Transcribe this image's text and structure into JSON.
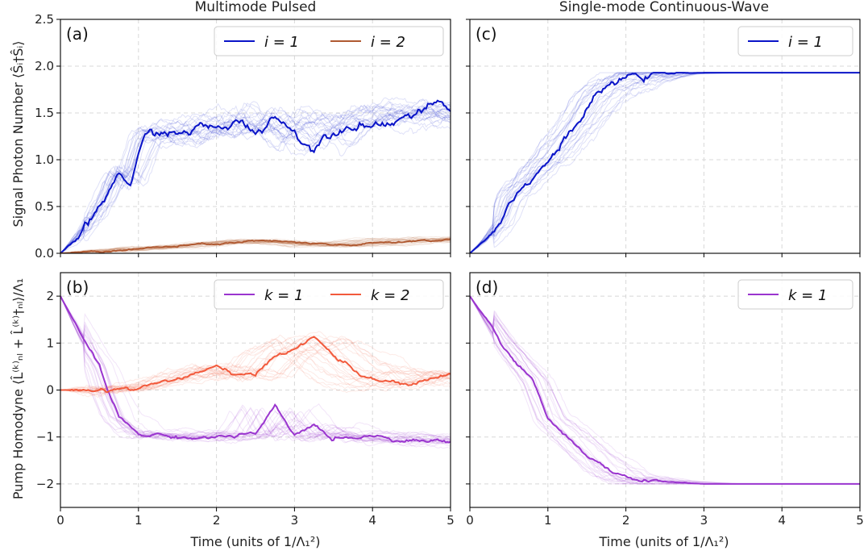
{
  "panels": [
    {
      "id": "a",
      "tag": "(a)",
      "title": "Multimode Pulsed",
      "ylabel": "Signal Photon Number ⟨Ŝᵢ†Ŝᵢ⟩",
      "xlabel": "",
      "xlim": [
        0,
        5
      ],
      "ylim": [
        0,
        2.5
      ],
      "xticks": [
        "0",
        "1",
        "2",
        "3",
        "4",
        "5"
      ],
      "yticks": [
        "0.0",
        "0.5",
        "1.0",
        "1.5",
        "2.0",
        "2.5"
      ],
      "legend": [
        "i = 1",
        "i = 2"
      ]
    },
    {
      "id": "c",
      "tag": "(c)",
      "title": "Single-mode Continuous-Wave",
      "ylabel": "",
      "xlabel": "",
      "xlim": [
        0,
        5
      ],
      "ylim": [
        0,
        2.5
      ],
      "legend": [
        "i = 1"
      ]
    },
    {
      "id": "b",
      "tag": "(b)",
      "title": "",
      "ylabel": "Pump Homodyne ⟨L̂⁽ᵏ⁾ₙₗ + L̂⁽ᵏ⁾†ₙₗ⟩/Λ₁",
      "xlabel": "Time (units of 1/Λ₁²)",
      "xlim": [
        0,
        5
      ],
      "ylim": [
        -2.5,
        2.5
      ],
      "xticks": [
        "0",
        "1",
        "2",
        "3",
        "4",
        "5"
      ],
      "yticks": [
        "−2",
        "−1",
        "0",
        "1",
        "2"
      ],
      "legend": [
        "k = 1",
        "k = 2"
      ]
    },
    {
      "id": "d",
      "tag": "(d)",
      "title": "",
      "ylabel": "",
      "xlabel": "Time (units of 1/Λ₁²)",
      "xlim": [
        0,
        5
      ],
      "ylim": [
        -2.5,
        2.5
      ],
      "xticks": [
        "0",
        "1",
        "2",
        "3",
        "4",
        "5"
      ],
      "legend": [
        "k = 1"
      ]
    }
  ],
  "colors": {
    "signal_i1": "#0a14c8",
    "signal_i2": "#b05a32",
    "pump_k1": "#9a35cf",
    "pump_k2": "#f25a3c"
  },
  "chart_data": [
    {
      "type": "line",
      "panel": "a",
      "title": "Multimode Pulsed",
      "ylabel": "Signal Photon Number ⟨Ŝᵢ†Ŝᵢ⟩",
      "xlim": [
        0,
        5
      ],
      "ylim": [
        0,
        2.5
      ],
      "grid": true,
      "legend_position": "top-right",
      "series": [
        {
          "name": "i = 1",
          "color": "#0a14c8",
          "x": [
            0,
            0.25,
            0.5,
            0.6,
            0.75,
            0.9,
            1.0,
            1.1,
            1.3,
            1.5,
            1.75,
            2.0,
            2.25,
            2.5,
            2.75,
            3.0,
            3.25,
            3.5,
            3.75,
            4.0,
            4.25,
            4.5,
            4.75,
            5.0
          ],
          "y": [
            0,
            0.2,
            0.45,
            0.6,
            0.85,
            0.75,
            1.0,
            1.25,
            1.3,
            1.25,
            1.35,
            1.3,
            1.4,
            1.3,
            1.5,
            1.3,
            1.15,
            1.35,
            1.45,
            1.4,
            1.45,
            1.5,
            1.55,
            1.5
          ]
        },
        {
          "name": "i = 2",
          "color": "#b05a32",
          "x": [
            0,
            0.5,
            1.0,
            1.5,
            2.0,
            2.5,
            3.0,
            3.5,
            4.0,
            4.5,
            5.0
          ],
          "y": [
            0,
            0.02,
            0.05,
            0.07,
            0.1,
            0.13,
            0.11,
            0.08,
            0.1,
            0.13,
            0.15
          ]
        }
      ]
    },
    {
      "type": "line",
      "panel": "c",
      "title": "Single-mode Continuous-Wave",
      "xlim": [
        0,
        5
      ],
      "ylim": [
        0,
        2.5
      ],
      "grid": true,
      "legend_position": "top-right",
      "series": [
        {
          "name": "i = 1",
          "color": "#0a14c8",
          "x": [
            0,
            0.2,
            0.4,
            0.5,
            0.7,
            0.85,
            1.0,
            1.2,
            1.4,
            1.6,
            1.8,
            2.0,
            2.2,
            2.5,
            3.0,
            4.0,
            5.0
          ],
          "y": [
            0,
            0.15,
            0.35,
            0.6,
            0.75,
            0.9,
            1.0,
            1.2,
            1.4,
            1.65,
            1.78,
            1.85,
            1.9,
            1.92,
            1.93,
            1.93,
            1.93
          ]
        }
      ]
    },
    {
      "type": "line",
      "panel": "b",
      "ylabel": "Pump Homodyne ⟨L̂⁽ᵏ⁾ₙₗ + L̂⁽ᵏ⁾†ₙₗ⟩/Λ₁",
      "xlabel": "Time (units of 1/Λ₁²)",
      "xlim": [
        0,
        5
      ],
      "ylim": [
        -2.5,
        2.5
      ],
      "grid": true,
      "legend_position": "top-right",
      "series": [
        {
          "name": "k = 1",
          "color": "#9a35cf",
          "x": [
            0,
            0.25,
            0.5,
            0.6,
            0.75,
            1.0,
            1.25,
            1.5,
            2.0,
            2.5,
            2.75,
            3.0,
            3.25,
            3.5,
            4.0,
            4.5,
            5.0
          ],
          "y": [
            2,
            1.2,
            0.5,
            0.0,
            -0.6,
            -0.95,
            -0.95,
            -1.0,
            -1.0,
            -0.95,
            -0.4,
            -1.0,
            -0.75,
            -1.05,
            -0.95,
            -1.05,
            -1.1
          ]
        },
        {
          "name": "k = 2",
          "color": "#f25a3c",
          "x": [
            0,
            0.5,
            0.75,
            1.0,
            1.5,
            2.0,
            2.5,
            2.75,
            3.0,
            3.25,
            3.5,
            3.75,
            4.0,
            4.5,
            5.0
          ],
          "y": [
            0,
            0.0,
            0.05,
            0.05,
            0.25,
            0.45,
            0.25,
            0.75,
            0.9,
            1.1,
            0.75,
            0.45,
            0.2,
            0.1,
            0.35
          ]
        }
      ]
    },
    {
      "type": "line",
      "panel": "d",
      "xlabel": "Time (units of 1/Λ₁²)",
      "xlim": [
        0,
        5
      ],
      "ylim": [
        -2.5,
        2.5
      ],
      "grid": true,
      "legend_position": "top-right",
      "series": [
        {
          "name": "k = 1",
          "color": "#9a35cf",
          "x": [
            0,
            0.2,
            0.4,
            0.6,
            0.8,
            1.0,
            1.2,
            1.4,
            1.6,
            1.8,
            2.0,
            2.5,
            3.0,
            4.0,
            5.0
          ],
          "y": [
            2,
            1.5,
            1.0,
            0.6,
            0.2,
            -0.6,
            -0.9,
            -1.2,
            -1.5,
            -1.75,
            -1.88,
            -1.95,
            -2.0,
            -2.0,
            -2.0
          ]
        }
      ]
    }
  ]
}
